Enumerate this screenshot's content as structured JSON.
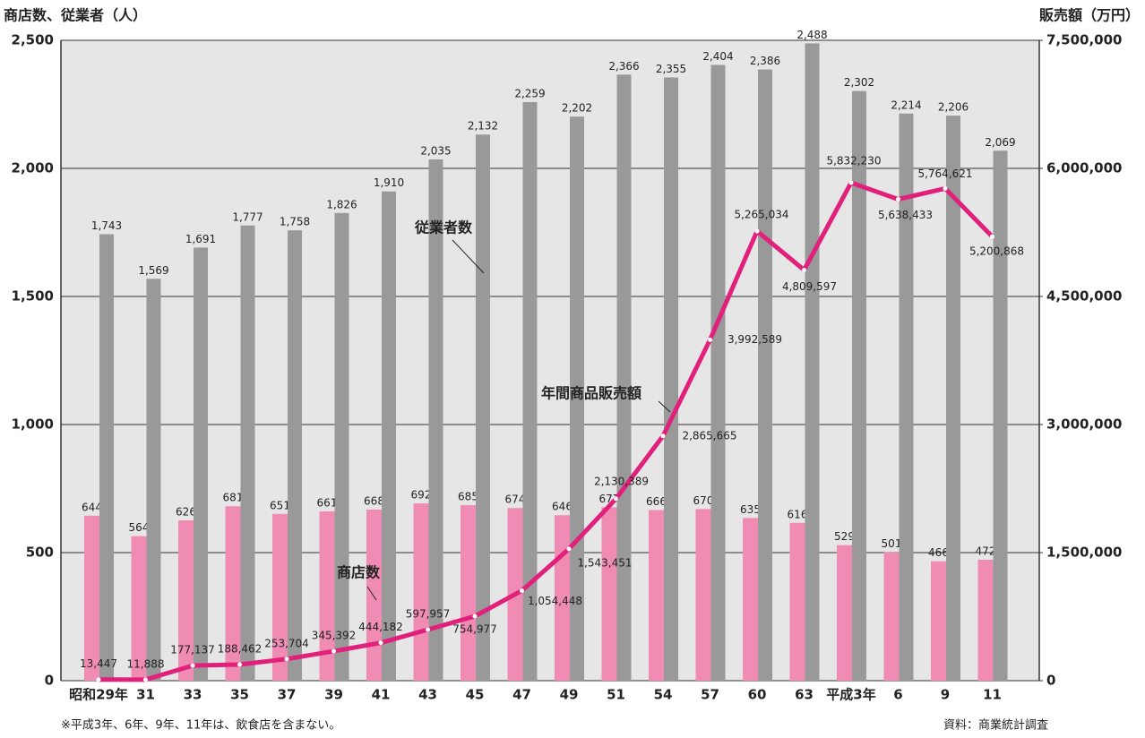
{
  "chart_data": {
    "type": "bar",
    "y_label": "商店数、従業者（人）",
    "y2_label": "販売額（万円）",
    "footnote": "※平成3年、6年、9年、11年は、飲食店を含まない。",
    "source": "資料：商業統計調査",
    "categories": [
      "昭和29年",
      "31",
      "33",
      "35",
      "37",
      "39",
      "41",
      "43",
      "45",
      "47",
      "49",
      "51",
      "54",
      "57",
      "60",
      "63",
      "平成3年",
      "6",
      "9",
      "11"
    ],
    "series": [
      {
        "name": "商店数",
        "type": "bar",
        "color": "#f08cb4",
        "values": [
          644,
          564,
          626,
          681,
          651,
          661,
          668,
          692,
          685,
          674,
          646,
          677,
          666,
          670,
          635,
          616,
          529,
          501,
          466,
          472
        ]
      },
      {
        "name": "従業者数",
        "type": "bar",
        "color": "#999999",
        "values": [
          1743,
          1569,
          1691,
          1777,
          1758,
          1826,
          1910,
          2035,
          2132,
          2259,
          2202,
          2366,
          2355,
          2404,
          2386,
          2488,
          2302,
          2214,
          2206,
          2069
        ],
        "value_labels": [
          "1,743",
          "1,569",
          "1,691",
          "1,777",
          "1,758",
          "1,826",
          "1,910",
          "2,035",
          "2,132",
          "2,259",
          "2,202",
          "2,366",
          "2,355",
          "2,404",
          "2,386",
          "2,488",
          "2,302",
          "2,214",
          "2,206",
          "2,069"
        ]
      },
      {
        "name": "年間商品販売額",
        "type": "line",
        "axis": "y2",
        "color": "#e0207a",
        "values": [
          13447,
          11888,
          177137,
          188462,
          253704,
          345392,
          444182,
          597957,
          754977,
          1054448,
          1543451,
          2130389,
          2865665,
          3992589,
          5265034,
          4809597,
          5832230,
          5638433,
          5764621,
          5200868
        ],
        "value_labels": [
          "13,447",
          "11,888",
          "177,137",
          "188,462",
          "253,704",
          "345,392",
          "444,182",
          "597,957",
          "754,977",
          "1,054,448",
          "1,543,451",
          "2,130,389",
          "2,865,665",
          "3,992,589",
          "5,265,034",
          "4,809,597",
          "5,832,230",
          "5,638,433",
          "5,764,621",
          "5,200,868"
        ]
      }
    ],
    "ylim": [
      0,
      2500
    ],
    "yticks": [
      0,
      500,
      {
        "value": 1000,
        "label": "1,000"
      },
      {
        "value": 1500,
        "label": "1,500"
      },
      {
        "value": 2000,
        "label": "2,000"
      },
      {
        "value": 2500,
        "label": "2,500"
      }
    ],
    "y2lim": [
      0,
      7500000
    ],
    "y2ticks": [
      0,
      {
        "value": 1500000,
        "label": "1,500,000"
      },
      {
        "value": 3000000,
        "label": "3,000,000"
      },
      {
        "value": 4500000,
        "label": "4,500,000"
      },
      {
        "value": 6000000,
        "label": "6,000,000"
      },
      {
        "value": 7500000,
        "label": "7,500,000"
      }
    ],
    "grid": true
  }
}
